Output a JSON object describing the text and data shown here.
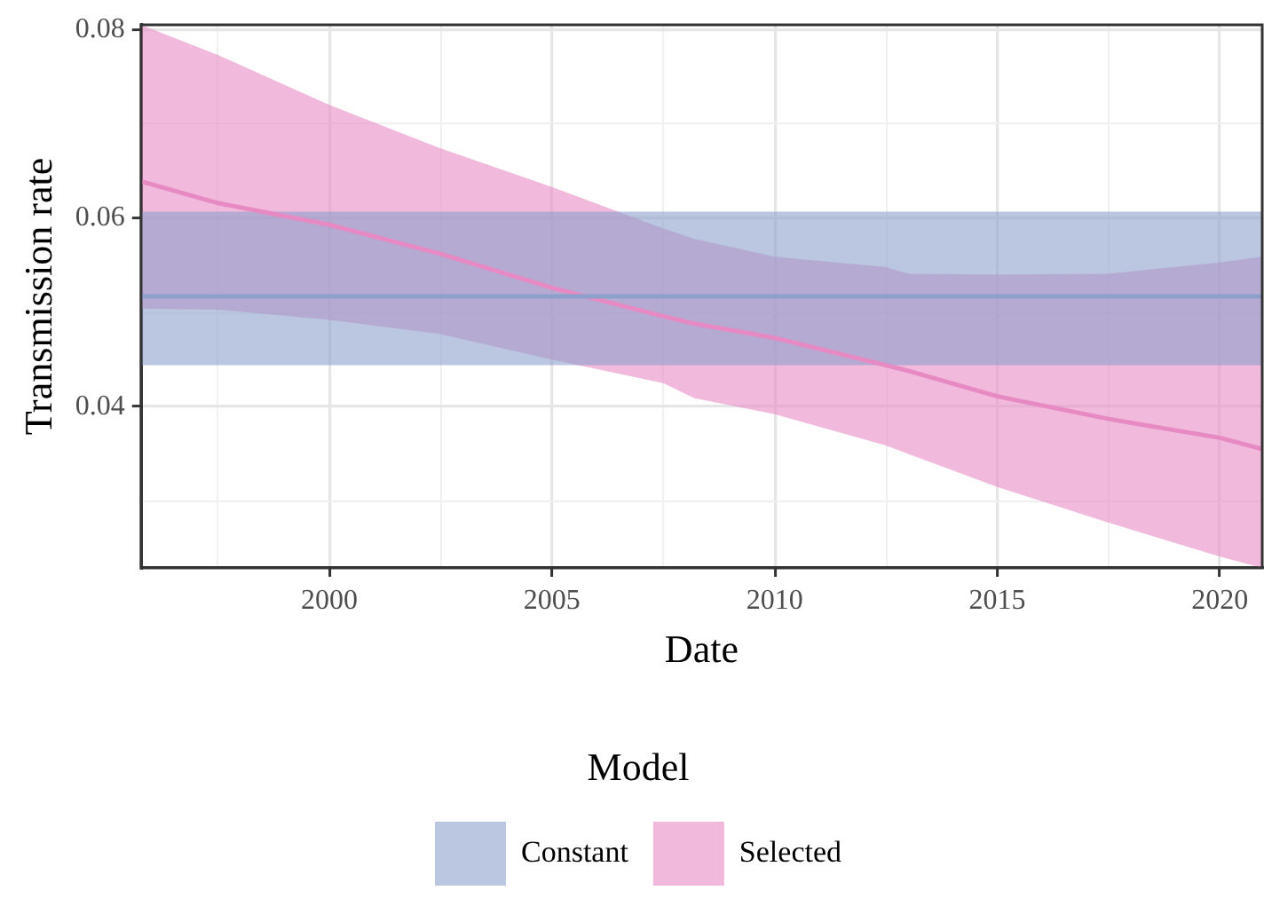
{
  "chart_data": {
    "type": "line",
    "xlabel": "Date",
    "ylabel": "Transmission rate",
    "legend_title": "Model",
    "legend": "bottom",
    "grid": true,
    "marker": "none",
    "line_style": "solid",
    "xlim": [
      1995.77,
      2020.95
    ],
    "xticks": [
      {
        "value": 1997.5,
        "label": null
      },
      2000,
      {
        "value": 2002.5,
        "label": null
      },
      2005,
      {
        "value": 2007.5,
        "label": null
      },
      2010,
      {
        "value": 2012.5,
        "label": null
      },
      2015,
      {
        "value": 2017.5,
        "label": null
      },
      2020
    ],
    "ylim": [
      0.0229,
      0.0805
    ],
    "yticks": [
      {
        "value": 0.03,
        "label": null
      },
      0.04,
      {
        "value": 0.05,
        "label": null
      },
      0.06,
      {
        "value": 0.07,
        "label": null
      },
      0.08
    ],
    "series": [
      {
        "name": "Constant",
        "color": "#8da0cb",
        "x": [
          1995.77,
          2020.95
        ],
        "values": [
          0.0517,
          0.0517
        ],
        "lower": [
          0.0444,
          0.0444
        ],
        "upper": [
          0.0607,
          0.0607
        ]
      },
      {
        "name": "Selected",
        "color": "#e78ac3",
        "x": [
          1995.77,
          1997.5,
          2000,
          2002.5,
          2005,
          2007.5,
          2008.2,
          2010,
          2012.5,
          2013,
          2015,
          2017.5,
          2020,
          2020.95
        ],
        "values": [
          0.0639,
          0.0616,
          0.0593,
          0.0562,
          0.0526,
          0.0496,
          0.0488,
          0.0473,
          0.0444,
          0.0438,
          0.0411,
          0.0387,
          0.0367,
          0.0355
        ],
        "lower": [
          0.0504,
          0.0503,
          0.0492,
          0.0477,
          0.045,
          0.0425,
          0.0409,
          0.0392,
          0.0359,
          0.035,
          0.0315,
          0.0277,
          0.0241,
          0.0229
        ],
        "upper": [
          0.0805,
          0.0773,
          0.072,
          0.0674,
          0.0633,
          0.0589,
          0.0578,
          0.0559,
          0.0548,
          0.0541,
          0.054,
          0.0541,
          0.0553,
          0.0559
        ]
      }
    ]
  }
}
